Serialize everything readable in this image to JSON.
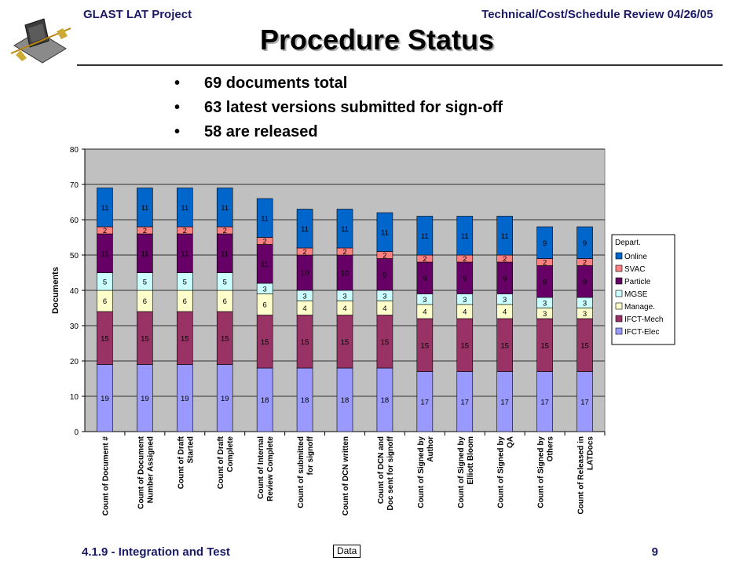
{
  "header": {
    "left": "GLAST LAT Project",
    "right": "Technical/Cost/Schedule Review 04/26/05"
  },
  "title": "Procedure Status",
  "bullets": [
    "69 documents total",
    "63 latest versions submitted for sign-off",
    "58 are released"
  ],
  "footer": {
    "left": "4.1.9 - Integration and Test",
    "page_number": "9",
    "data_button": "Data"
  },
  "colors": {
    "plot_background": "#c0c0c0",
    "IFCT-Elec": "#9999ff",
    "IFCT-Mech": "#993366",
    "Manage.": "#ffffcc",
    "MGSE": "#ccffff",
    "Particle": "#660066",
    "SVAC": "#ff8080",
    "Online": "#0066cc"
  },
  "chart_data": {
    "type": "bar",
    "stacked": true,
    "ylabel": "Documents",
    "xlabel": "",
    "ylim": [
      0,
      80
    ],
    "yticks": [
      0,
      10,
      20,
      30,
      40,
      50,
      60,
      70,
      80
    ],
    "grid": true,
    "legend_title": "Depart.",
    "legend_position": "right",
    "categories": [
      "Count of Document #",
      "Count of Document Number Assigned",
      "Count of Draft Started",
      "Count of Draft Complete",
      "Count of Internal Review Complete",
      "Count of submitted for signoff",
      "Count of DCN written",
      "Count of DCN and Doc sent for signoff",
      "Count of Signed by Author",
      "Count of Signed by Elliott Bloom",
      "Count of Signed by QA",
      "Count of Signed by Others",
      "Count of Released in LATDocs"
    ],
    "category_lines": [
      [
        "Count of Document #"
      ],
      [
        "Count of Document",
        "Number Assigned"
      ],
      [
        "Count of Draft",
        "Started"
      ],
      [
        "Count of Draft",
        "Complete"
      ],
      [
        "Count of Internal",
        "Review Complete"
      ],
      [
        "Count of submitted",
        "for signoff"
      ],
      [
        "Count of DCN written"
      ],
      [
        "Count of DCN and",
        "Doc sent for signoff"
      ],
      [
        "Count of Signed by",
        "Author"
      ],
      [
        "Count of Signed by",
        "Elliott Bloom"
      ],
      [
        "Count of Signed by",
        "QA"
      ],
      [
        "Count of Signed by",
        "Others"
      ],
      [
        "Count of Released in",
        "LATDocs"
      ]
    ],
    "series": [
      {
        "name": "IFCT-Elec",
        "values": [
          19,
          19,
          19,
          19,
          18,
          18,
          18,
          18,
          17,
          17,
          17,
          17,
          17
        ]
      },
      {
        "name": "IFCT-Mech",
        "values": [
          15,
          15,
          15,
          15,
          15,
          15,
          15,
          15,
          15,
          15,
          15,
          15,
          15
        ]
      },
      {
        "name": "Manage.",
        "values": [
          6,
          6,
          6,
          6,
          6,
          4,
          4,
          4,
          4,
          4,
          4,
          3,
          3
        ]
      },
      {
        "name": "MGSE",
        "values": [
          5,
          5,
          5,
          5,
          3,
          3,
          3,
          3,
          3,
          3,
          3,
          3,
          3
        ]
      },
      {
        "name": "Particle",
        "values": [
          11,
          11,
          11,
          11,
          11,
          10,
          10,
          9,
          9,
          9,
          9,
          9,
          9
        ]
      },
      {
        "name": "SVAC",
        "values": [
          2,
          2,
          2,
          2,
          2,
          2,
          2,
          2,
          2,
          2,
          2,
          2,
          2
        ]
      },
      {
        "name": "Online",
        "values": [
          11,
          11,
          11,
          11,
          11,
          11,
          11,
          11,
          11,
          11,
          11,
          9,
          9
        ]
      }
    ]
  }
}
